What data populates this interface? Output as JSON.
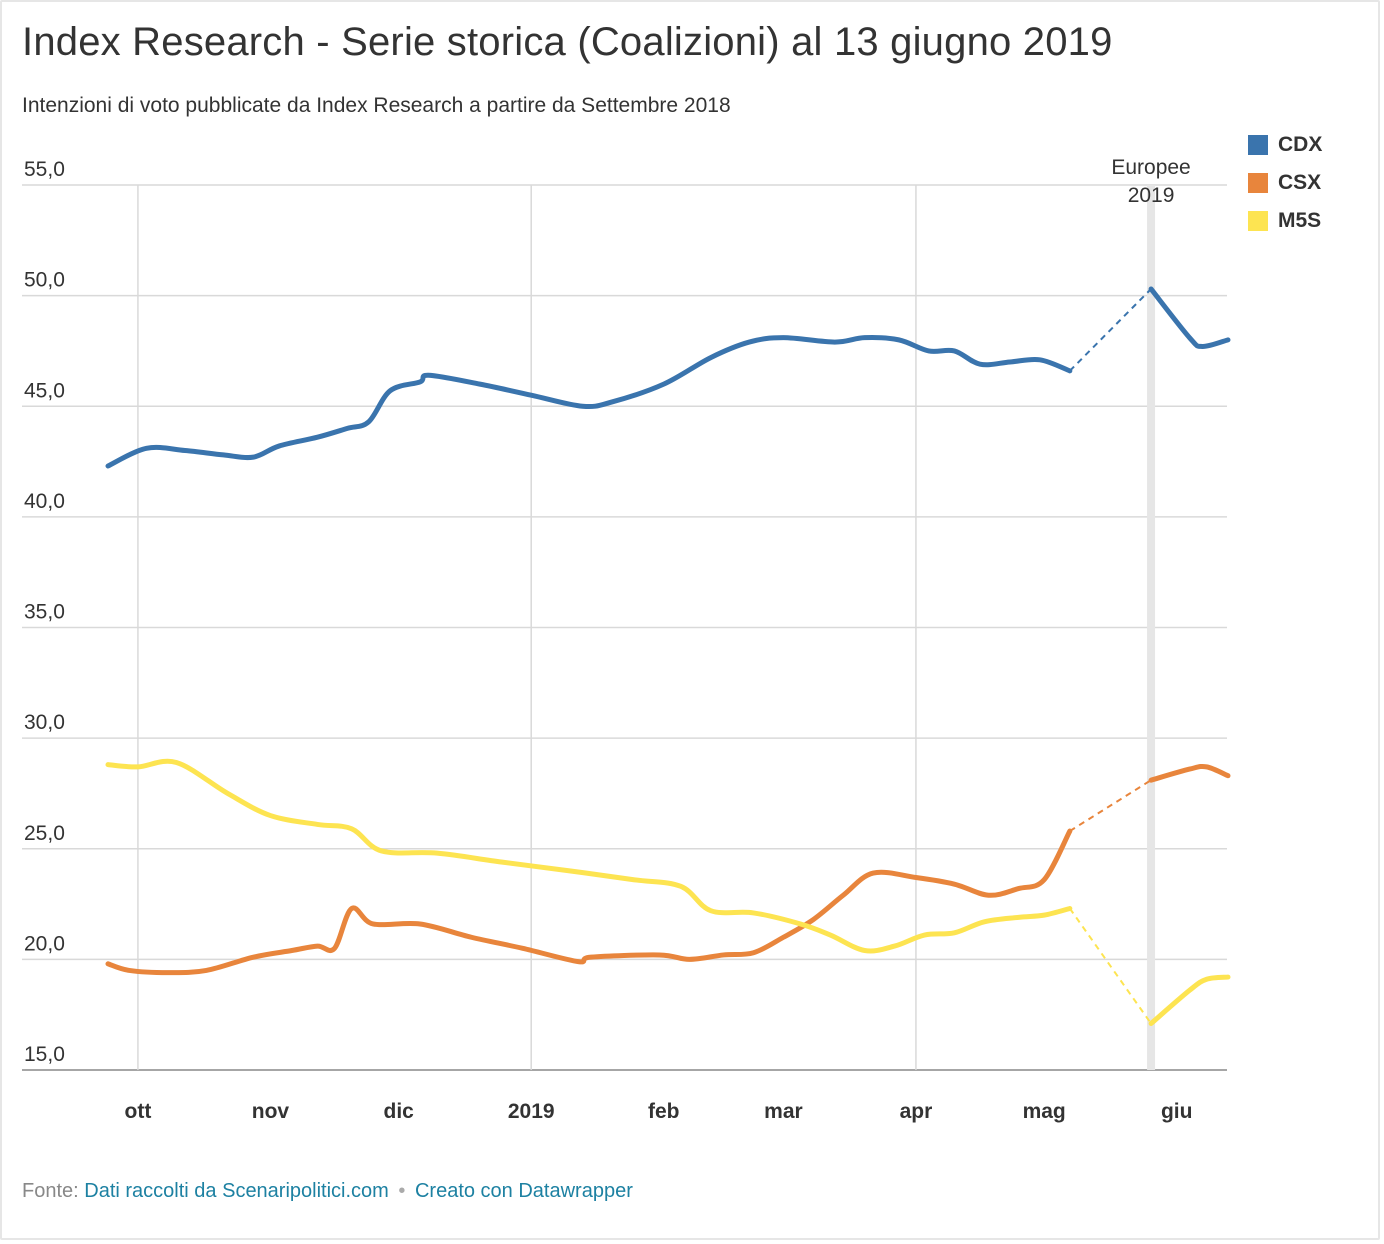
{
  "header": {
    "title": "Index Research - Serie storica (Coalizioni) al 13 giugno 2019",
    "subtitle": "Intenzioni di voto pubblicate da Index Research a partire da Settembre 2018"
  },
  "footer": {
    "prefix": "Fonte:",
    "source_link": "Dati raccolti da Scenaripolitici.com",
    "separator": "•",
    "made_with_link": "Creato con Datawrapper"
  },
  "chart_data": {
    "type": "line",
    "title": "Index Research - Serie storica (Coalizioni) al 13 giugno 2019",
    "subtitle": "Intenzioni di voto pubblicate da Index Research a partire da Settembre 2018",
    "xlabel": "",
    "ylabel": "",
    "x_range": [
      "2018-09-24",
      "2019-06-13"
    ],
    "ylim": [
      15,
      55
    ],
    "y_ticks": [
      15,
      20,
      25,
      30,
      35,
      40,
      45,
      50,
      55
    ],
    "y_tick_labels": [
      "15,0",
      "20,0",
      "25,0",
      "30,0",
      "35,0",
      "40,0",
      "45,0",
      "50,0",
      "55,0"
    ],
    "x_ticks": [
      {
        "date": "2018-10-01",
        "label": "ott"
      },
      {
        "date": "2018-11-01",
        "label": "nov"
      },
      {
        "date": "2018-12-01",
        "label": "dic"
      },
      {
        "date": "2019-01-01",
        "label": "2019"
      },
      {
        "date": "2019-02-01",
        "label": "feb"
      },
      {
        "date": "2019-03-01",
        "label": "mar"
      },
      {
        "date": "2019-04-01",
        "label": "apr"
      },
      {
        "date": "2019-05-01",
        "label": "mag"
      },
      {
        "date": "2019-06-01",
        "label": "giu"
      }
    ],
    "x_gridlines": [
      "2018-10-01",
      "2019-01-01",
      "2019-04-01"
    ],
    "grid": true,
    "legend_position": "top-right",
    "annotation": {
      "date": "2019-05-26",
      "text_line1": "Europee",
      "text_line2": "2019"
    },
    "series": [
      {
        "name": "CDX",
        "color": "#3a74ad",
        "points": [
          [
            "2018-09-24",
            42.3
          ],
          [
            "2018-10-03",
            43.1
          ],
          [
            "2018-10-12",
            43.0
          ],
          [
            "2018-10-21",
            42.8
          ],
          [
            "2018-10-28",
            42.7
          ],
          [
            "2018-11-03",
            43.2
          ],
          [
            "2018-11-12",
            43.6
          ],
          [
            "2018-11-19",
            44.0
          ],
          [
            "2018-11-24",
            44.3
          ],
          [
            "2018-11-29",
            45.7
          ],
          [
            "2018-12-06",
            46.1
          ],
          [
            "2018-12-08",
            46.4
          ],
          [
            "2018-12-20",
            46.0
          ],
          [
            "2019-01-01",
            45.5
          ],
          [
            "2019-01-13",
            45.0
          ],
          [
            "2019-01-20",
            45.2
          ],
          [
            "2019-02-01",
            46.0
          ],
          [
            "2019-02-12",
            47.2
          ],
          [
            "2019-02-21",
            47.9
          ],
          [
            "2019-03-01",
            48.1
          ],
          [
            "2019-03-13",
            47.9
          ],
          [
            "2019-03-20",
            48.1
          ],
          [
            "2019-03-28",
            48.0
          ],
          [
            "2019-04-04",
            47.5
          ],
          [
            "2019-04-10",
            47.5
          ],
          [
            "2019-04-16",
            46.9
          ],
          [
            "2019-04-23",
            47.0
          ],
          [
            "2019-04-30",
            47.1
          ],
          [
            "2019-05-07",
            46.6
          ],
          [
            "2019-05-26",
            50.3
          ],
          [
            "2019-06-04",
            48.1
          ],
          [
            "2019-06-07",
            47.7
          ],
          [
            "2019-06-13",
            48.0
          ]
        ]
      },
      {
        "name": "CSX",
        "color": "#e8853c",
        "points": [
          [
            "2018-09-24",
            19.8
          ],
          [
            "2018-09-29",
            19.5
          ],
          [
            "2018-10-08",
            19.4
          ],
          [
            "2018-10-17",
            19.5
          ],
          [
            "2018-10-28",
            20.1
          ],
          [
            "2018-11-06",
            20.4
          ],
          [
            "2018-11-12",
            20.6
          ],
          [
            "2018-11-16",
            20.5
          ],
          [
            "2018-11-20",
            22.3
          ],
          [
            "2018-11-25",
            21.6
          ],
          [
            "2018-12-06",
            21.6
          ],
          [
            "2018-12-18",
            21.0
          ],
          [
            "2018-12-30",
            20.5
          ],
          [
            "2019-01-12",
            19.9
          ],
          [
            "2019-01-15",
            20.1
          ],
          [
            "2019-01-31",
            20.2
          ],
          [
            "2019-02-07",
            20.0
          ],
          [
            "2019-02-15",
            20.2
          ],
          [
            "2019-02-22",
            20.3
          ],
          [
            "2019-03-01",
            21.0
          ],
          [
            "2019-03-08",
            21.8
          ],
          [
            "2019-03-15",
            22.9
          ],
          [
            "2019-03-22",
            23.9
          ],
          [
            "2019-04-01",
            23.7
          ],
          [
            "2019-04-10",
            23.4
          ],
          [
            "2019-04-18",
            22.9
          ],
          [
            "2019-04-25",
            23.2
          ],
          [
            "2019-05-01",
            23.6
          ],
          [
            "2019-05-07",
            25.8
          ],
          [
            "2019-05-26",
            28.1
          ],
          [
            "2019-06-04",
            28.6
          ],
          [
            "2019-06-08",
            28.7
          ],
          [
            "2019-06-13",
            28.3
          ]
        ]
      },
      {
        "name": "M5S",
        "color": "#fde451",
        "points": [
          [
            "2018-09-24",
            28.8
          ],
          [
            "2018-10-01",
            28.7
          ],
          [
            "2018-10-10",
            28.9
          ],
          [
            "2018-10-22",
            27.5
          ],
          [
            "2018-11-01",
            26.5
          ],
          [
            "2018-11-12",
            26.1
          ],
          [
            "2018-11-20",
            25.9
          ],
          [
            "2018-11-27",
            24.9
          ],
          [
            "2018-12-10",
            24.8
          ],
          [
            "2018-12-25",
            24.4
          ],
          [
            "2019-01-10",
            24.0
          ],
          [
            "2019-01-25",
            23.6
          ],
          [
            "2019-02-05",
            23.3
          ],
          [
            "2019-02-12",
            22.2
          ],
          [
            "2019-02-22",
            22.1
          ],
          [
            "2019-03-05",
            21.6
          ],
          [
            "2019-03-12",
            21.1
          ],
          [
            "2019-03-20",
            20.4
          ],
          [
            "2019-03-27",
            20.6
          ],
          [
            "2019-04-03",
            21.1
          ],
          [
            "2019-04-10",
            21.2
          ],
          [
            "2019-04-17",
            21.7
          ],
          [
            "2019-04-25",
            21.9
          ],
          [
            "2019-05-01",
            22.0
          ],
          [
            "2019-05-07",
            22.3
          ],
          [
            "2019-05-26",
            17.1
          ],
          [
            "2019-06-04",
            18.6
          ],
          [
            "2019-06-08",
            19.1
          ],
          [
            "2019-06-13",
            19.2
          ]
        ]
      }
    ]
  }
}
